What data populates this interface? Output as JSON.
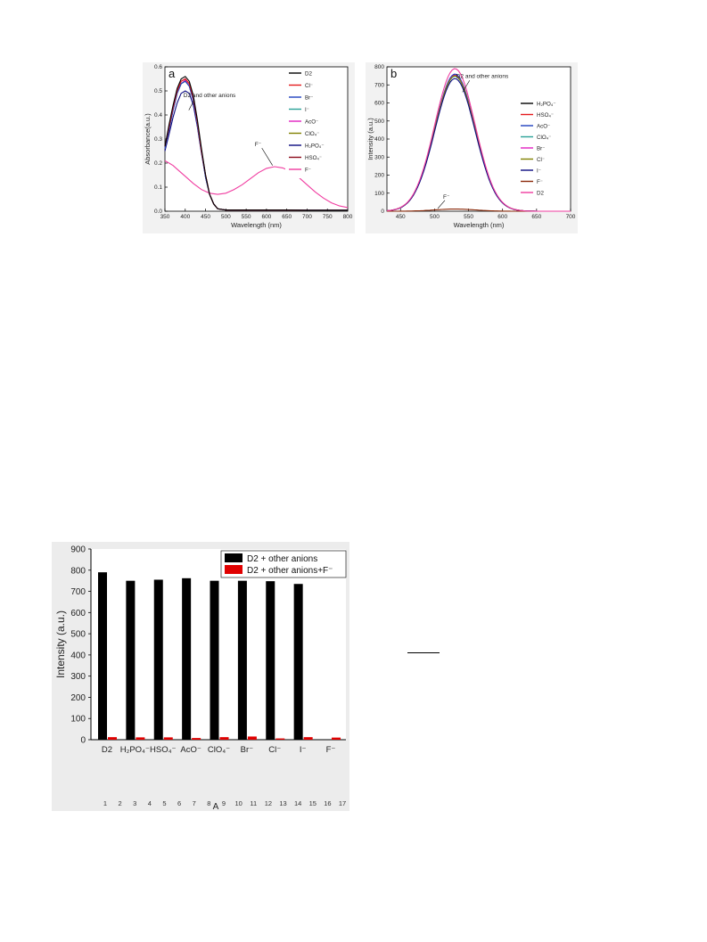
{
  "chart_data": [
    {
      "type": "line",
      "panel_label": "a",
      "xlabel": "Wavelength (nm)",
      "ylabel": "Absorbance(a.u.)",
      "xlim": [
        350,
        800
      ],
      "ylim": [
        0.0,
        0.6
      ],
      "xticks": [
        "350",
        "400",
        "450",
        "500",
        "550",
        "600",
        "650",
        "700",
        "750",
        "800"
      ],
      "yticks": [
        "0.0",
        "0.1",
        "0.2",
        "0.3",
        "0.4",
        "0.5",
        "0.6"
      ],
      "legend_position": "right",
      "annotations": [
        {
          "text": "D2 and other anions",
          "x": 400,
          "y": 0.47
        },
        {
          "text": "F⁻",
          "x": 615,
          "y": 0.27
        }
      ],
      "series": [
        {
          "name": "D2",
          "color": "#000000",
          "x": [
            350,
            360,
            370,
            380,
            390,
            400,
            410,
            420,
            430,
            440,
            450,
            460,
            470,
            480,
            500,
            550,
            600,
            650,
            700,
            750,
            800
          ],
          "y": [
            0.27,
            0.36,
            0.44,
            0.51,
            0.55,
            0.56,
            0.54,
            0.48,
            0.38,
            0.26,
            0.15,
            0.07,
            0.03,
            0.01,
            0.005,
            0.005,
            0.005,
            0.005,
            0.004,
            0.004,
            0.004
          ]
        },
        {
          "name": "Cl⁻",
          "color": "#e41a1c",
          "x": [
            350,
            360,
            370,
            380,
            390,
            400,
            410,
            420,
            430,
            440,
            450,
            460,
            470,
            480,
            500,
            550,
            600,
            650,
            700,
            750,
            800
          ],
          "y": [
            0.27,
            0.35,
            0.43,
            0.5,
            0.54,
            0.55,
            0.53,
            0.47,
            0.37,
            0.25,
            0.15,
            0.07,
            0.03,
            0.01,
            0.005,
            0.005,
            0.005,
            0.005,
            0.004,
            0.004,
            0.004
          ]
        },
        {
          "name": "Br⁻",
          "color": "#1f3fbf",
          "x": [
            350,
            360,
            370,
            380,
            390,
            400,
            410,
            420,
            430,
            440,
            450,
            460,
            470,
            480,
            500,
            550,
            600,
            650,
            700,
            750,
            800
          ],
          "y": [
            0.26,
            0.34,
            0.42,
            0.49,
            0.53,
            0.54,
            0.52,
            0.46,
            0.36,
            0.25,
            0.14,
            0.07,
            0.03,
            0.01,
            0.005,
            0.005,
            0.005,
            0.005,
            0.004,
            0.004,
            0.004
          ]
        },
        {
          "name": "I⁻",
          "color": "#2aa198",
          "x": [
            350,
            360,
            370,
            380,
            390,
            400,
            410,
            420,
            430,
            440,
            450,
            460,
            470,
            480,
            500,
            550,
            600,
            650,
            700,
            750,
            800
          ],
          "y": [
            0.26,
            0.34,
            0.42,
            0.49,
            0.53,
            0.54,
            0.52,
            0.46,
            0.36,
            0.25,
            0.14,
            0.07,
            0.03,
            0.01,
            0.005,
            0.005,
            0.005,
            0.005,
            0.004,
            0.004,
            0.004
          ]
        },
        {
          "name": "AcO⁻",
          "color": "#e020c0",
          "x": [
            350,
            360,
            370,
            380,
            390,
            400,
            410,
            420,
            430,
            440,
            450,
            460,
            470,
            480,
            500,
            550,
            600,
            650,
            700,
            750,
            800
          ],
          "y": [
            0.26,
            0.34,
            0.42,
            0.49,
            0.53,
            0.545,
            0.52,
            0.46,
            0.36,
            0.25,
            0.14,
            0.07,
            0.03,
            0.01,
            0.005,
            0.005,
            0.005,
            0.005,
            0.004,
            0.004,
            0.004
          ]
        },
        {
          "name": "ClO₄⁻",
          "color": "#808000",
          "x": [
            350,
            360,
            370,
            380,
            390,
            400,
            410,
            420,
            430,
            440,
            450,
            460,
            470,
            480,
            500,
            550,
            600,
            650,
            700,
            750,
            800
          ],
          "y": [
            0.26,
            0.34,
            0.42,
            0.49,
            0.53,
            0.54,
            0.52,
            0.46,
            0.36,
            0.25,
            0.14,
            0.07,
            0.03,
            0.01,
            0.005,
            0.005,
            0.005,
            0.005,
            0.004,
            0.004,
            0.004
          ]
        },
        {
          "name": "H₂PO₄⁻",
          "color": "#0a0a80",
          "x": [
            350,
            360,
            370,
            380,
            390,
            400,
            410,
            420,
            430,
            440,
            450,
            460,
            470,
            480,
            500,
            550,
            600,
            650,
            700,
            750,
            800
          ],
          "y": [
            0.25,
            0.32,
            0.39,
            0.45,
            0.49,
            0.5,
            0.49,
            0.44,
            0.35,
            0.24,
            0.14,
            0.07,
            0.03,
            0.01,
            0.005,
            0.005,
            0.005,
            0.005,
            0.004,
            0.004,
            0.004
          ]
        },
        {
          "name": "HSO₄⁻",
          "color": "#8b0a1a",
          "x": [
            350,
            360,
            370,
            380,
            390,
            400,
            410,
            420,
            430,
            440,
            450,
            460,
            470,
            480,
            500,
            550,
            600,
            650,
            700,
            750,
            800
          ],
          "y": [
            0.27,
            0.35,
            0.43,
            0.5,
            0.54,
            0.55,
            0.53,
            0.47,
            0.37,
            0.25,
            0.15,
            0.07,
            0.03,
            0.01,
            0.005,
            0.005,
            0.005,
            0.005,
            0.004,
            0.004,
            0.004
          ]
        },
        {
          "name": "F⁻",
          "color": "#f03ca0",
          "x": [
            350,
            360,
            370,
            380,
            390,
            400,
            420,
            440,
            460,
            480,
            500,
            520,
            540,
            560,
            580,
            600,
            620,
            640,
            660,
            680,
            700,
            720,
            740,
            760,
            780,
            800
          ],
          "y": [
            0.21,
            0.2,
            0.19,
            0.175,
            0.16,
            0.145,
            0.115,
            0.09,
            0.075,
            0.07,
            0.075,
            0.09,
            0.11,
            0.135,
            0.16,
            0.178,
            0.185,
            0.18,
            0.165,
            0.14,
            0.11,
            0.08,
            0.055,
            0.035,
            0.022,
            0.015
          ]
        }
      ]
    },
    {
      "type": "line",
      "panel_label": "b",
      "xlabel": "Wavelength (nm)",
      "ylabel": "Intensity (a.u.)",
      "xlim": [
        430,
        700
      ],
      "ylim": [
        0,
        800
      ],
      "xticks": [
        "450",
        "500",
        "550",
        "600",
        "650",
        "700"
      ],
      "yticks": [
        "0",
        "100",
        "200",
        "300",
        "400",
        "500",
        "600",
        "700",
        "800"
      ],
      "legend_position": "right",
      "annotations": [
        {
          "text": "D2 and other anions",
          "x": 545,
          "y": 700
        },
        {
          "text": "F⁻",
          "x": 510,
          "y": 70
        }
      ],
      "series": [
        {
          "name": "H₂PO₄⁻",
          "color": "#000000",
          "peak": 750
        },
        {
          "name": "HSO₄⁻",
          "color": "#e41a1c",
          "peak": 755
        },
        {
          "name": "AcO⁻",
          "color": "#1f3fbf",
          "peak": 760
        },
        {
          "name": "ClO₄⁻",
          "color": "#2aa198",
          "peak": 748
        },
        {
          "name": "Br⁻",
          "color": "#e020c0",
          "peak": 752
        },
        {
          "name": "Cl⁻",
          "color": "#808000",
          "peak": 750
        },
        {
          "name": "I⁻",
          "color": "#0a0a80",
          "peak": 735
        },
        {
          "name": "F⁻",
          "color": "#8b2a0a",
          "peak": 12
        },
        {
          "name": "D2",
          "color": "#f03ca0",
          "peak": 790
        }
      ],
      "band_center_nm": 530,
      "band_width_nm": 42,
      "x_start_nm": 430,
      "x_end_nm": 700
    },
    {
      "type": "bar",
      "ylabel": "Intensity (a.u.)",
      "ylim": [
        0,
        900
      ],
      "yticks": [
        "0",
        "100",
        "200",
        "300",
        "400",
        "500",
        "600",
        "700",
        "800",
        "900"
      ],
      "categories": [
        "D2",
        "H₂PO₄⁻",
        "HSO₄⁻",
        "AcO⁻",
        "ClO₄⁻",
        "Br⁻",
        "Cl⁻",
        "I⁻",
        "F⁻"
      ],
      "series": [
        {
          "name": "D2 + other anions",
          "color": "#000000",
          "values": [
            790,
            750,
            755,
            762,
            750,
            750,
            748,
            735,
            null
          ]
        },
        {
          "name": "D2 + other anions+F⁻",
          "color": "#e00000",
          "values": [
            12,
            11,
            11,
            8,
            12,
            15,
            6,
            12,
            10
          ]
        }
      ],
      "bottom_ticks": [
        "1",
        "2",
        "3",
        "4",
        "5",
        "6",
        "7",
        "8",
        "9",
        "10",
        "11",
        "12",
        "13",
        "14",
        "15",
        "16",
        "17"
      ],
      "bottom_label": "A",
      "legend_position": "top-right"
    }
  ]
}
